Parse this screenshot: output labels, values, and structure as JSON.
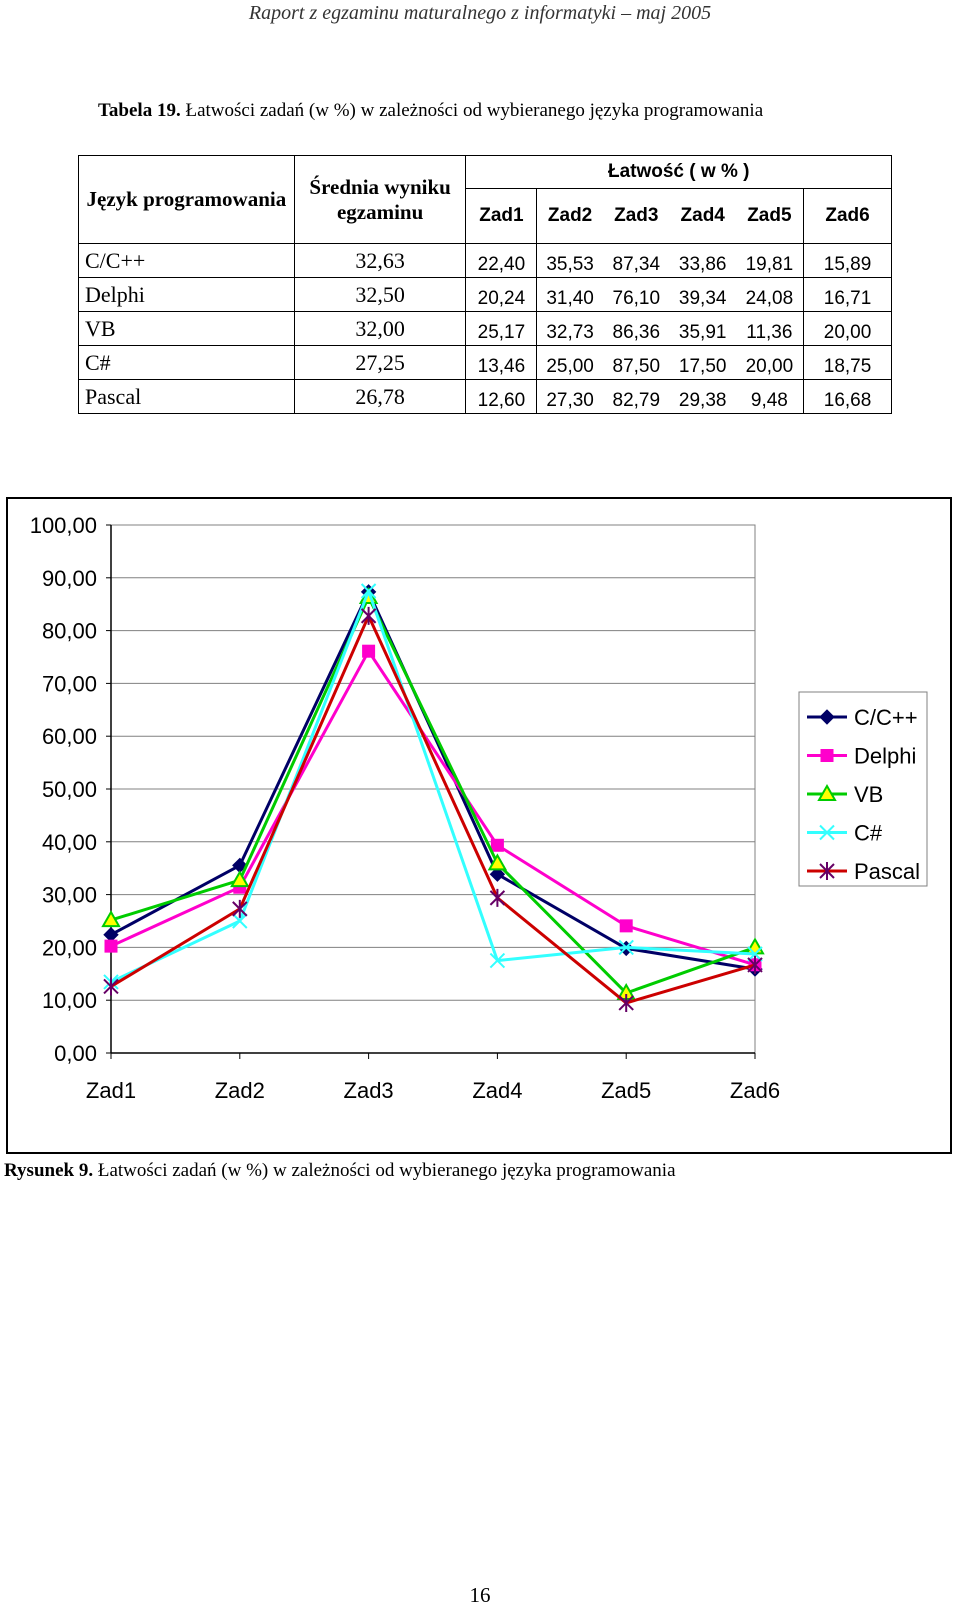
{
  "header": {
    "title": "Raport z egzaminu maturalnego z informatyki – maj 2005"
  },
  "table": {
    "caption_label": "Tabela 19.",
    "caption_text": "Łatwości zadań (w %) w zależności od wybieranego języka programowania",
    "col_language": "Język programowania",
    "col_average": "Średnia wyniku egzaminu",
    "col_group": "Łatwość ( w % )",
    "task_headers": [
      "Zad1",
      "Zad2",
      "Zad3",
      "Zad4",
      "Zad5",
      "Zad6"
    ],
    "rows": [
      {
        "language": "C/C++",
        "average": "32,63",
        "values": [
          "22,40",
          "35,53",
          "87,34",
          "33,86",
          "19,81",
          "15,89"
        ]
      },
      {
        "language": "Delphi",
        "average": "32,50",
        "values": [
          "20,24",
          "31,40",
          "76,10",
          "39,34",
          "24,08",
          "16,71"
        ]
      },
      {
        "language": "VB",
        "average": "32,00",
        "values": [
          "25,17",
          "32,73",
          "86,36",
          "35,91",
          "11,36",
          "20,00"
        ]
      },
      {
        "language": "C#",
        "average": "27,25",
        "values": [
          "13,46",
          "25,00",
          "87,50",
          "17,50",
          "20,00",
          "18,75"
        ]
      },
      {
        "language": "Pascal",
        "average": "26,78",
        "values": [
          "12,60",
          "27,30",
          "82,79",
          "29,38",
          "9,48",
          "16,68"
        ]
      }
    ]
  },
  "chart_data": {
    "type": "line",
    "categories": [
      "Zad1",
      "Zad2",
      "Zad3",
      "Zad4",
      "Zad5",
      "Zad6"
    ],
    "ylim": [
      0,
      100
    ],
    "yticks": [
      "0,00",
      "10,00",
      "20,00",
      "30,00",
      "40,00",
      "50,00",
      "60,00",
      "70,00",
      "80,00",
      "90,00",
      "100,00"
    ],
    "grid": true,
    "legend_position": "right",
    "series": [
      {
        "name": "C/C++",
        "color": "#000066",
        "marker": "diamond",
        "values": [
          22.4,
          35.53,
          87.34,
          33.86,
          19.81,
          15.89
        ]
      },
      {
        "name": "Delphi",
        "color": "#ff00cc",
        "marker": "square",
        "values": [
          20.24,
          31.4,
          76.1,
          39.34,
          24.08,
          16.71
        ]
      },
      {
        "name": "VB",
        "color": "#00cc00",
        "marker": "triangle",
        "values": [
          25.17,
          32.73,
          86.36,
          35.91,
          11.36,
          20.0
        ]
      },
      {
        "name": "C#",
        "color": "#33ffff",
        "marker": "x",
        "values": [
          13.46,
          25.0,
          87.5,
          17.5,
          20.0,
          18.75
        ]
      },
      {
        "name": "Pascal",
        "color": "#cc0000",
        "marker": "star",
        "values": [
          12.6,
          27.3,
          82.79,
          29.38,
          9.48,
          16.68
        ]
      }
    ]
  },
  "figure": {
    "caption_label": "Rysunek 9.",
    "caption_text": "Łatwości zadań (w %) w zależności od wybieranego języka programowania"
  },
  "page_number": "16"
}
